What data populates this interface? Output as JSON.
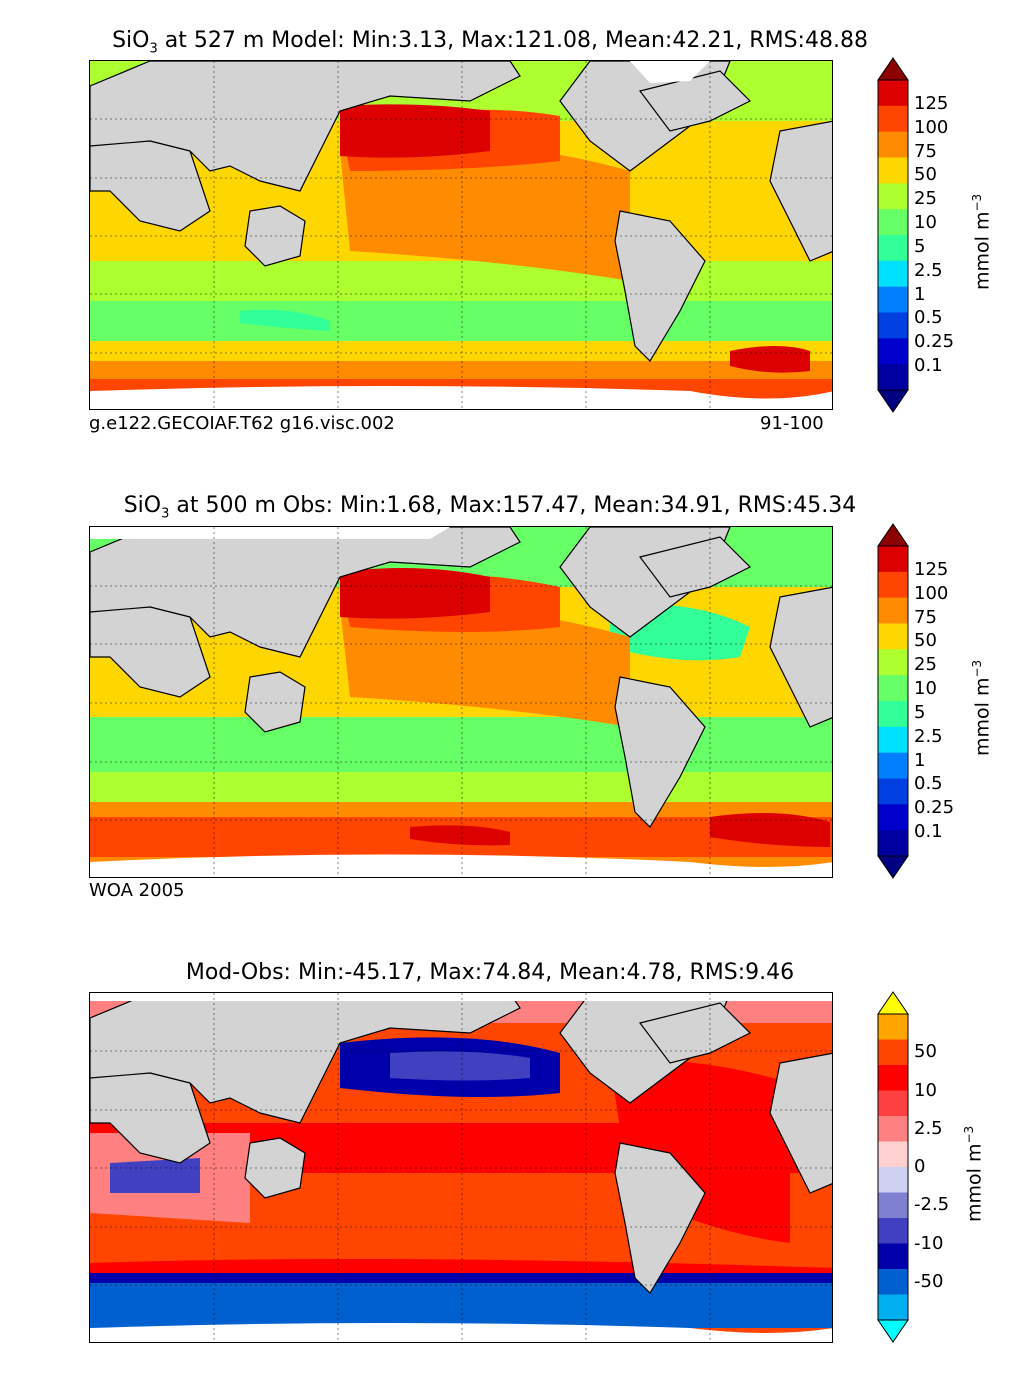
{
  "panels": [
    {
      "title_species": "SiO",
      "title_sub": "3",
      "title_rest": " at 527 m Model: Min:3.13, Max:121.08, Mean:42.21, RMS:48.88",
      "caption_left": "g.e122.GECOIAF.T62 g16.visc.002",
      "caption_right": "91-100",
      "unit": "mmol m",
      "unit_exp": "−3"
    },
    {
      "title_species": "SiO",
      "title_sub": "3",
      "title_rest": " at 500 m Obs: Min:1.68, Max:157.47, Mean:34.91, RMS:45.34",
      "caption_left": "WOA 2005",
      "caption_right": "",
      "unit": "mmol m",
      "unit_exp": "−3"
    },
    {
      "title_full": "Mod-Obs: Min:-45.17, Max:74.84, Mean:4.78, RMS:9.46",
      "unit": "mmol m",
      "unit_exp": "−3"
    }
  ],
  "colorbar_conc": {
    "labels": [
      "125",
      "100",
      "75",
      "50",
      "25",
      "10",
      "5",
      "2.5",
      "1",
      "0.5",
      "0.25",
      "0.1"
    ],
    "colors": [
      "#8b0000",
      "#dd0000",
      "#ff4500",
      "#ff8c00",
      "#ffd700",
      "#adff2f",
      "#66ff66",
      "#33ff99",
      "#00e0ff",
      "#0080ff",
      "#0040e0",
      "#0000cd",
      "#0000a0",
      "#000080"
    ]
  },
  "colorbar_diff": {
    "labels": [
      "50",
      "10",
      "2.5",
      "0",
      "-2.5",
      "-10",
      "-50"
    ],
    "colors": [
      "#ffff00",
      "#ffa500",
      "#ff4500",
      "#ff0000",
      "#ff4040",
      "#ff8080",
      "#ffd0d0",
      "#d0d0f0",
      "#8080d0",
      "#4040c0",
      "#0000aa",
      "#0060d0",
      "#00b0f0",
      "#00ffff"
    ]
  },
  "chart_data": [
    {
      "type": "heatmap",
      "title": "SiO3 at 527 m Model: Min:3.13, Max:121.08, Mean:42.21, RMS:48.88",
      "variable": "SiO3",
      "depth_m": 527,
      "source": "Model",
      "stats": {
        "min": 3.13,
        "max": 121.08,
        "mean": 42.21,
        "rms": 48.88
      },
      "colorbar_levels": [
        0.1,
        0.25,
        0.5,
        1,
        2.5,
        5,
        10,
        25,
        50,
        75,
        100,
        125
      ],
      "units": "mmol m^-3"
    },
    {
      "type": "heatmap",
      "title": "SiO3 at 500 m Obs: Min:1.68, Max:157.47, Mean:34.91, RMS:45.34",
      "variable": "SiO3",
      "depth_m": 500,
      "source": "WOA 2005",
      "stats": {
        "min": 1.68,
        "max": 157.47,
        "mean": 34.91,
        "rms": 45.34
      },
      "colorbar_levels": [
        0.1,
        0.25,
        0.5,
        1,
        2.5,
        5,
        10,
        25,
        50,
        75,
        100,
        125
      ],
      "units": "mmol m^-3"
    },
    {
      "type": "heatmap",
      "title": "Mod-Obs: Min:-45.17, Max:74.84, Mean:4.78, RMS:9.46",
      "variable": "SiO3 difference",
      "stats": {
        "min": -45.17,
        "max": 74.84,
        "mean": 4.78,
        "rms": 9.46
      },
      "colorbar_levels": [
        -50,
        -10,
        -2.5,
        0,
        2.5,
        10,
        50
      ],
      "units": "mmol m^-3"
    }
  ]
}
